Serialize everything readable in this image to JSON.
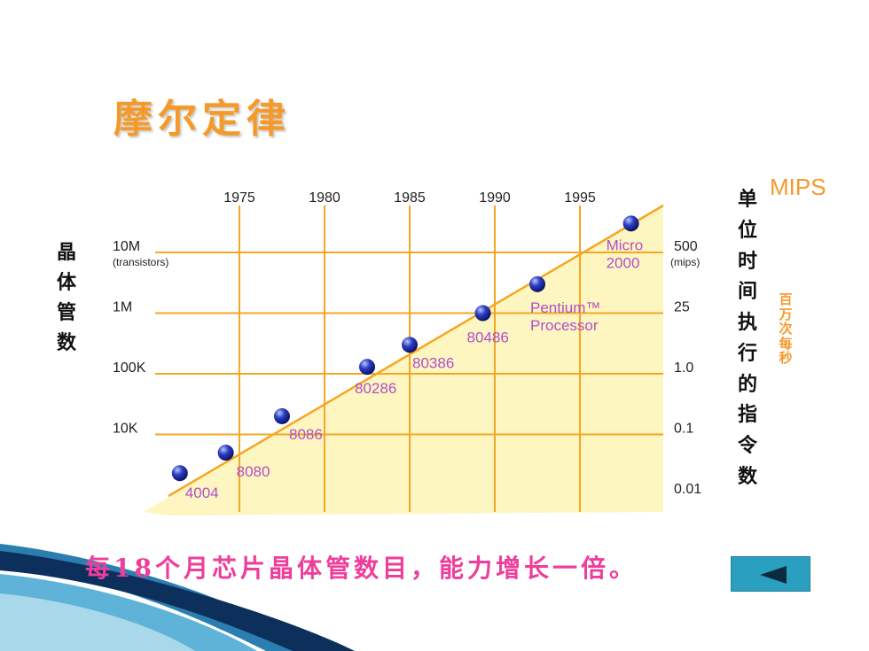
{
  "slide": {
    "title": "摩尔定律",
    "left_axis_label": [
      "晶",
      "体",
      "管",
      "数"
    ],
    "right_axis_label": [
      "单",
      "位",
      "时",
      "间",
      "执",
      "行",
      "的",
      "指",
      "令",
      "数"
    ],
    "right_unit": "MIPS",
    "right_unit_sub": [
      "百",
      "万",
      "次",
      "每",
      "秒"
    ],
    "footer": "每18个月芯片晶体管数目，能力增长一倍。",
    "back_button_icon": "back-triangle-icon",
    "colors": {
      "title": "#f59a2a",
      "footer": "#ee3e9c",
      "grid": "#f5a623",
      "trend": "#f5a623",
      "area": "#fef6c0",
      "chip_label": "#b04fc8",
      "button": "#2a9fc0"
    }
  },
  "chart_data": {
    "type": "scatter",
    "x_ticks": [
      "1975",
      "1980",
      "1985",
      "1990",
      "1995"
    ],
    "x_tick_values": [
      1975,
      1980,
      1985,
      1990,
      1995
    ],
    "xlim": [
      1971,
      2000
    ],
    "y_left_ticks": [
      "10M",
      "1M",
      "100K",
      "10K"
    ],
    "y_left_tick_values": [
      10000000,
      1000000,
      100000,
      10000
    ],
    "y_left_unit": "(transistors)",
    "y_right_ticks": [
      "500",
      "25",
      "1.0",
      "0.1",
      "0.01"
    ],
    "y_right_unit": "(mips)",
    "ylim_log10": [
      3.0,
      7.5
    ],
    "log_scale": true,
    "grid": true,
    "series": [
      {
        "points": [
          {
            "label": [
              "4004"
            ],
            "year": 1971.5,
            "transistors": 2300
          },
          {
            "label": [
              "8080"
            ],
            "year": 1974.2,
            "transistors": 5000
          },
          {
            "label": [
              "8086"
            ],
            "year": 1977.5,
            "transistors": 20000
          },
          {
            "label": [
              "80286"
            ],
            "year": 1982.5,
            "transistors": 130000
          },
          {
            "label": [
              "80386"
            ],
            "year": 1985,
            "transistors": 300000
          },
          {
            "label": [
              "80486"
            ],
            "year": 1989.3,
            "transistors": 1000000
          },
          {
            "label": [
              "Pentium™",
              "Processor"
            ],
            "year": 1992.5,
            "transistors": 3000000
          },
          {
            "label": [
              "Micro",
              "2000"
            ],
            "year": 1998,
            "transistors": 30000000
          }
        ]
      }
    ]
  }
}
